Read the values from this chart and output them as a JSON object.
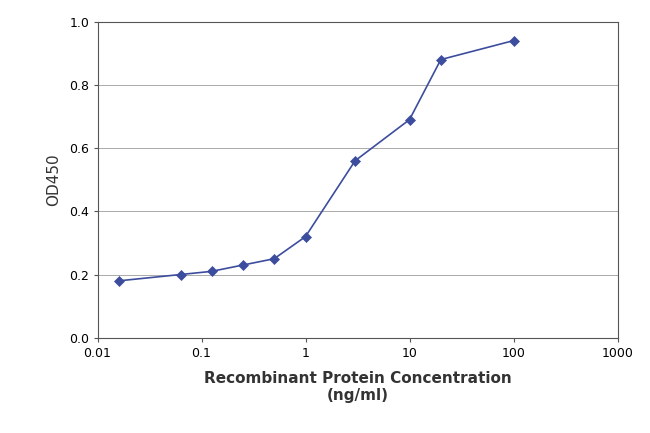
{
  "x_values": [
    0.016,
    0.063,
    0.125,
    0.25,
    0.5,
    1.0,
    3.0,
    10.0,
    20.0,
    100.0
  ],
  "y_values": [
    0.18,
    0.2,
    0.21,
    0.23,
    0.25,
    0.32,
    0.56,
    0.69,
    0.88,
    0.94
  ],
  "line_color": "#3d4d9e",
  "marker_color": "#3d4d9e",
  "marker_style": "D",
  "marker_size": 5,
  "line_width": 1.2,
  "xlabel_line1": "Recombinant Protein Concentration",
  "xlabel_line2": "(ng/ml)",
  "ylabel": "OD450",
  "xlim_log": [
    0.01,
    1000
  ],
  "ylim": [
    0.0,
    1.0
  ],
  "yticks": [
    0.0,
    0.2,
    0.4,
    0.6,
    0.8,
    1.0
  ],
  "xtick_labels": [
    "0.01",
    "0.1",
    "1",
    "10",
    "100",
    "1000"
  ],
  "xtick_values": [
    0.01,
    0.1,
    1,
    10,
    100,
    1000
  ],
  "grid_color": "#aaaaaa",
  "background_color": "#ffffff",
  "plot_bg_color": "#ffffff",
  "font_color": "#333333",
  "label_fontsize": 11,
  "tick_fontsize": 9
}
